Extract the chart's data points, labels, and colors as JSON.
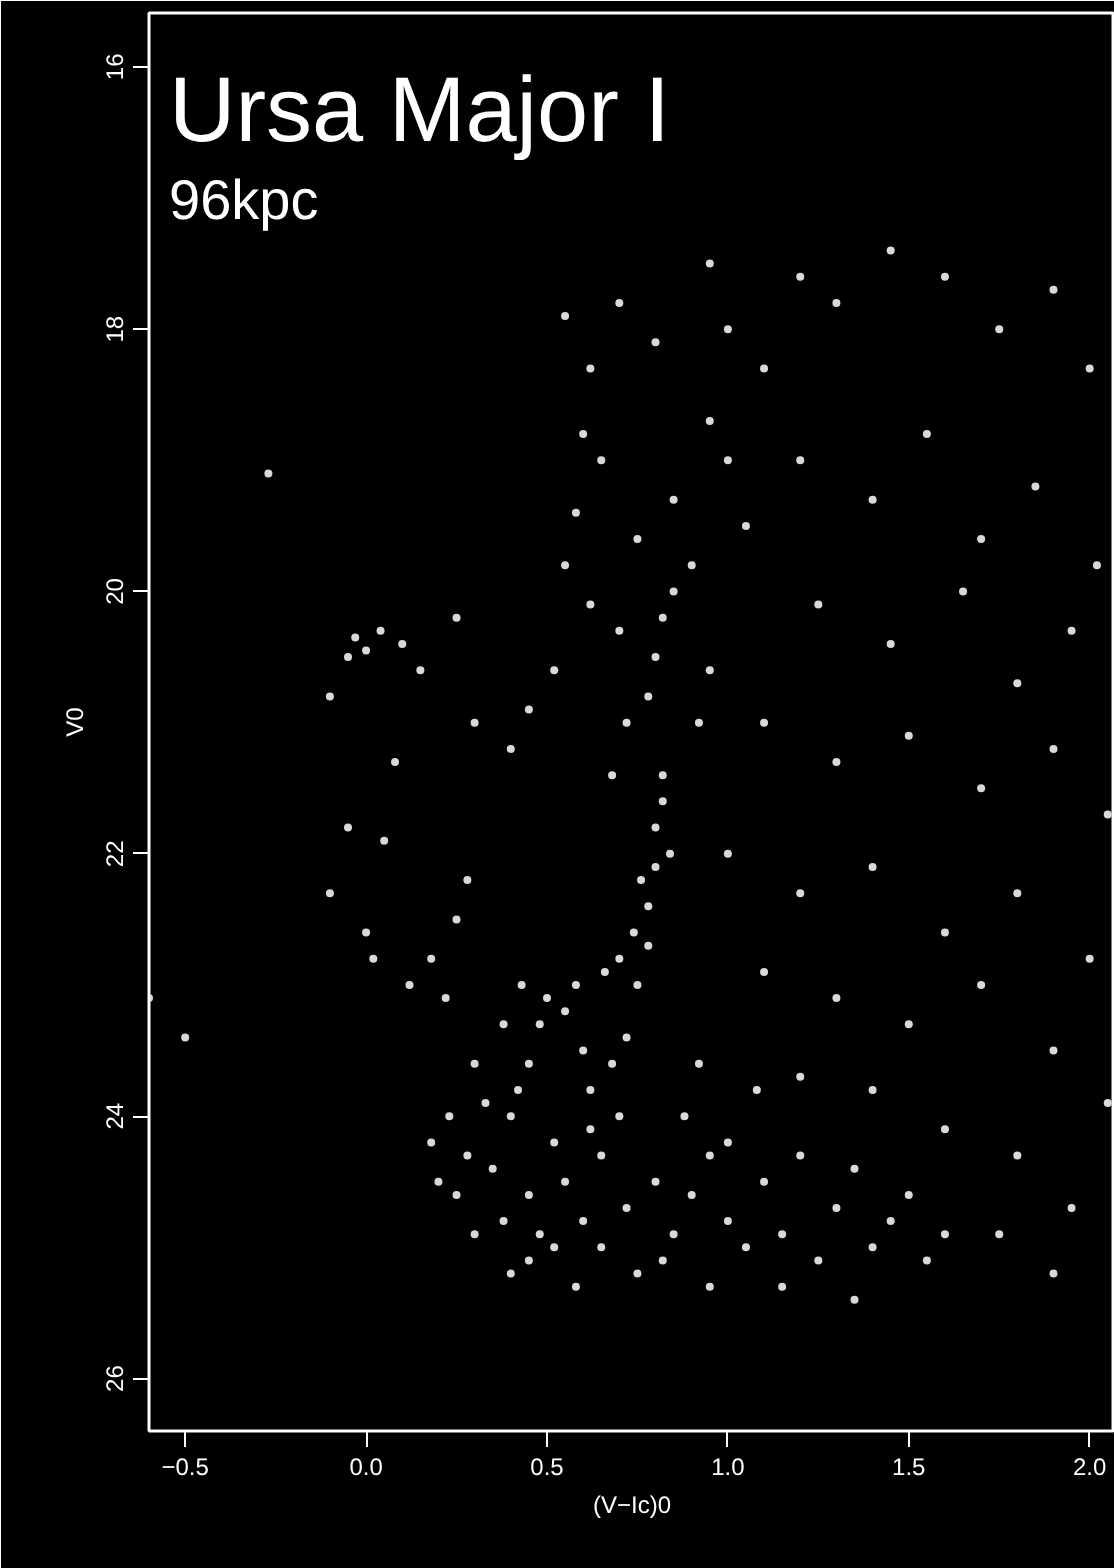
{
  "chart_data": {
    "type": "scatter",
    "title": "Ursa Major I",
    "subtitle": "96kpc",
    "xlabel": "(V−Ic)0",
    "ylabel": "V0",
    "xlim": [
      -0.6,
      2.07
    ],
    "ylim": [
      26.4,
      15.59
    ],
    "xticks": [
      {
        "value": -0.5,
        "label": "−0.5"
      },
      {
        "value": 0,
        "label": "0.0"
      },
      {
        "value": 0.5,
        "label": "0.5"
      },
      {
        "value": 1,
        "label": "1.0"
      },
      {
        "value": 1.5,
        "label": "1.5"
      },
      {
        "value": 2,
        "label": "2.0"
      }
    ],
    "yticks": [
      16,
      18,
      20,
      22,
      24,
      26
    ],
    "marker": "circle",
    "grid": false,
    "series": [
      {
        "color": "#d9d9d9",
        "x": [
          0.35,
          0.4,
          0.45,
          0.48,
          0.5,
          0.55,
          0.58,
          0.6,
          0.62,
          0.52,
          0.45,
          0.38,
          0.3,
          0.25,
          0.2,
          0.28,
          0.33,
          0.42,
          0.55,
          0.6,
          0.65,
          0.7,
          0.68,
          0.72,
          0.75,
          0.78,
          0.52,
          0.45,
          0.65,
          0.72,
          0.8,
          0.85,
          0.9,
          0.95,
          1.0,
          1.05,
          1.1,
          1.15,
          1.2,
          1.25,
          1.3,
          1.35,
          1.4,
          1.45,
          1.5,
          1.55,
          1.6,
          1.0,
          0.88,
          0.92,
          1.08,
          1.2,
          0.4,
          0.58,
          0.75,
          0.95,
          1.15,
          0.18,
          0.23,
          0.3,
          0.38,
          0.43,
          0.82,
          0.62,
          0.48,
          0.78,
          0.8,
          0.8,
          0.82,
          0.82,
          0.76,
          0.74,
          0.84,
          0.7,
          0.66,
          0.72,
          0.78,
          0.8,
          0.82,
          0.85,
          0.7,
          0.62,
          0.55,
          0.58,
          0.65,
          0.6,
          0.75,
          0.85,
          0.9,
          0.52,
          0.68,
          0.92,
          0.95,
          0.45,
          0.4,
          0.62,
          0.7,
          0.55,
          0.8,
          0.95,
          1.0,
          -0.05,
          -0.03,
          0.0,
          0.04,
          0.1,
          0.25,
          0.15,
          -0.27,
          -0.1,
          -0.05,
          0.05,
          -0.1,
          0.0,
          0.02,
          0.12,
          0.18,
          0.25,
          0.08,
          0.3,
          -0.5,
          -0.6,
          0.22,
          0.28,
          1.1,
          1.3,
          1.45,
          1.6,
          1.75,
          1.9,
          2.0,
          1.2,
          1.4,
          1.55,
          1.7,
          1.85,
          2.02,
          1.05,
          1.25,
          1.45,
          1.65,
          1.8,
          1.95,
          1.1,
          1.3,
          1.5,
          1.7,
          1.9,
          2.05,
          1.0,
          1.2,
          1.4,
          1.6,
          1.8,
          2.0,
          1.1,
          1.3,
          1.5,
          1.7,
          1.9,
          2.05,
          1.4,
          1.6,
          1.8,
          1.95,
          1.75,
          1.9,
          1.35,
          1.0,
          0.95,
          1.2
        ],
        "values": [
          24.4,
          24.0,
          23.6,
          23.3,
          23.1,
          23.2,
          23.0,
          23.5,
          23.8,
          24.2,
          24.6,
          24.8,
          24.9,
          24.6,
          24.5,
          24.3,
          23.9,
          23.8,
          24.5,
          24.8,
          24.3,
          24.0,
          23.6,
          23.4,
          23.0,
          22.7,
          25.0,
          25.1,
          25.0,
          24.7,
          24.5,
          24.9,
          24.6,
          24.3,
          24.8,
          25.0,
          24.5,
          24.9,
          24.3,
          25.1,
          24.7,
          24.4,
          25.0,
          24.8,
          24.6,
          25.1,
          24.9,
          24.2,
          24.0,
          23.6,
          23.8,
          23.7,
          25.2,
          25.3,
          25.2,
          25.3,
          25.3,
          24.2,
          24.0,
          23.6,
          23.3,
          23.0,
          25.1,
          24.1,
          24.9,
          22.4,
          22.1,
          21.8,
          21.6,
          21.4,
          22.2,
          22.6,
          22.0,
          22.8,
          22.9,
          21.0,
          20.8,
          20.5,
          20.2,
          20.0,
          20.3,
          20.1,
          19.8,
          19.4,
          19.0,
          18.8,
          19.6,
          19.3,
          19.8,
          20.6,
          21.4,
          21.0,
          20.6,
          20.9,
          21.2,
          18.3,
          17.8,
          17.9,
          18.1,
          17.5,
          18.0,
          20.5,
          20.35,
          20.45,
          20.3,
          20.4,
          20.2,
          20.6,
          19.1,
          20.8,
          21.8,
          21.9,
          22.3,
          22.6,
          22.8,
          23.0,
          22.8,
          22.5,
          21.3,
          21.0,
          23.4,
          23.1,
          23.1,
          22.2,
          18.3,
          17.8,
          17.4,
          17.6,
          18.0,
          17.7,
          18.3,
          19.0,
          19.3,
          18.8,
          19.6,
          19.2,
          19.8,
          19.5,
          20.1,
          20.4,
          20.0,
          20.7,
          20.3,
          21.0,
          21.3,
          21.1,
          21.5,
          21.2,
          21.7,
          22.0,
          22.3,
          22.1,
          22.6,
          22.3,
          22.8,
          22.9,
          23.1,
          23.3,
          23.0,
          23.5,
          23.9,
          23.8,
          24.1,
          24.3,
          24.7,
          24.9,
          25.2,
          25.4,
          19.0,
          18.7,
          17.6
        ]
      }
    ]
  }
}
